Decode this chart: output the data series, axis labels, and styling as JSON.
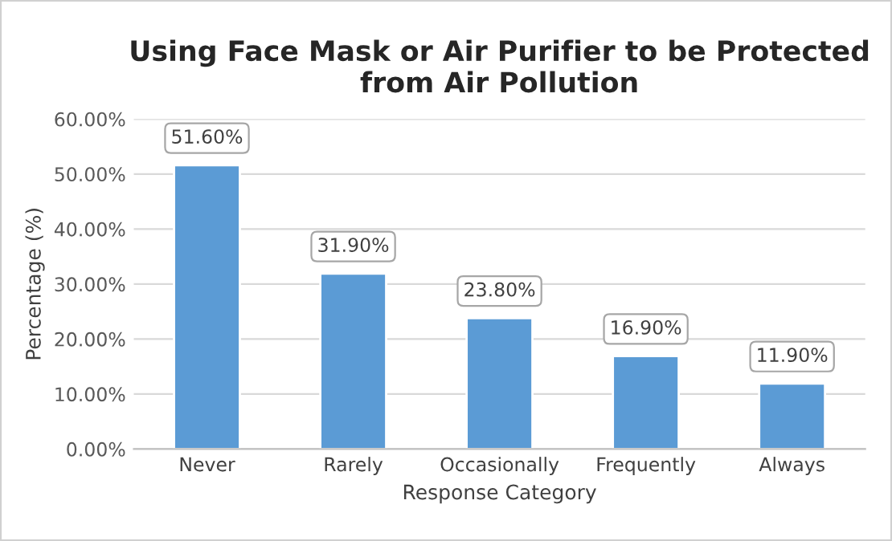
{
  "chart_data": {
    "type": "bar",
    "title": "Using Face Mask or Air Purifier to be Protected\nfrom Air Pollution",
    "xlabel": "Response Category",
    "ylabel": "Percentage (%)",
    "categories": [
      "Never",
      "Rarely",
      "Occasionally",
      "Frequently",
      "Always"
    ],
    "values": [
      51.6,
      31.9,
      23.8,
      16.9,
      11.9
    ],
    "value_labels": [
      "51.60%",
      "31.90%",
      "23.80%",
      "16.90%",
      "11.90%"
    ],
    "color": "#5b9bd5",
    "ylim": [
      0,
      60
    ],
    "yticks": [
      {
        "value": 0,
        "label": "0.00%"
      },
      {
        "value": 10,
        "label": "10.00%"
      },
      {
        "value": 20,
        "label": "20.00%"
      },
      {
        "value": 30,
        "label": "30.00%"
      },
      {
        "value": 40,
        "label": "40.00%"
      },
      {
        "value": 50,
        "label": "50.00%"
      },
      {
        "value": 60,
        "label": "60.00%"
      }
    ],
    "grid": "y",
    "legend": false
  }
}
